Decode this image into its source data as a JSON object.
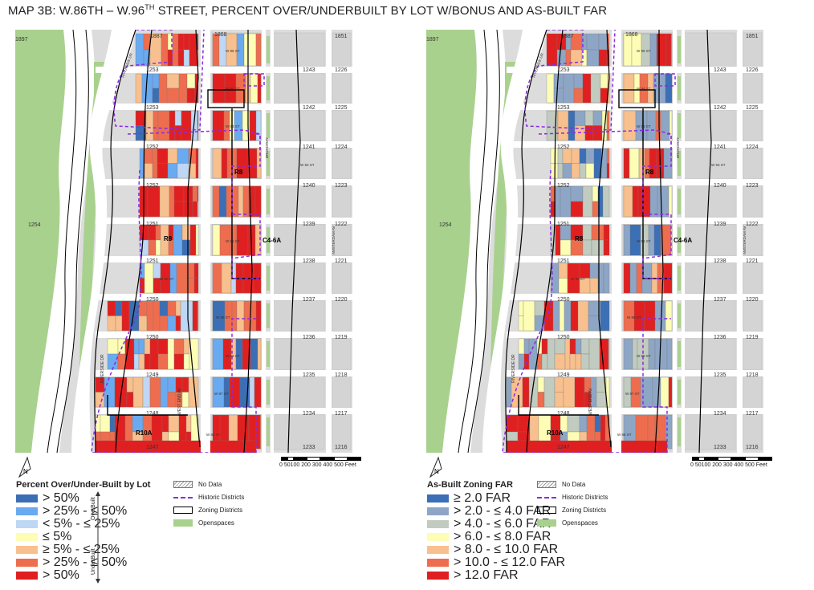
{
  "title": {
    "main": "MAP 3B: W.86TH – W.96",
    "sup": "TH",
    "rest": " STREET, PERCENT OVER/UNDERBUILT BY LOT W/BONUS AND AS-BUILT FAR"
  },
  "map_labels": {
    "block_numbers_left": [
      "1897",
      "1887",
      "1868",
      "1851",
      "1253",
      "1243",
      "1226",
      "1253",
      "1242",
      "1225",
      "1252",
      "1241",
      "1224",
      "1252",
      "1240",
      "1223",
      "1251",
      "1239",
      "1222",
      "1251",
      "1238",
      "1221",
      "1250",
      "1237",
      "1220",
      "1250",
      "1236",
      "1219",
      "1249",
      "1235",
      "1218",
      "1248",
      "1234",
      "1217",
      "1247",
      "1233",
      "1216",
      "1254"
    ],
    "zones": [
      "R8",
      "R8",
      "C4-6A",
      "R10A"
    ],
    "streets": [
      "W 95 ST",
      "W 94 ST",
      "W 93 ST",
      "W 91 ST",
      "W 90 ST",
      "W 89 ST",
      "W 88 ST",
      "W 87 ST",
      "W 86 ST"
    ],
    "avenues": [
      "RIVERSIDE DR",
      "WEST END AV",
      "BROADWAY",
      "AMSTERDAM AV",
      "RIVERSIDE DR"
    ]
  },
  "scale": {
    "ticks": "0 50100  200  300  400  500",
    "unit": "Feet"
  },
  "north_label": "N",
  "legend_left": {
    "title": "Percent Over/Under-Built by Lot",
    "items": [
      {
        "label": "> 50%",
        "color": "#3c6eb4"
      },
      {
        "label": "> 25% - ≤ 50%",
        "color": "#6aaaf0"
      },
      {
        "label": "< 5% - ≤ 25%",
        "color": "#bdd7f5"
      },
      {
        "label": "≤ 5%",
        "color": "#fdfdb5"
      },
      {
        "label": "≥ 5% - ≤ 25%",
        "color": "#f8c08e"
      },
      {
        "label": "> 25% - ≤ 50%",
        "color": "#ee6d4e"
      },
      {
        "label": "> 50%",
        "color": "#e02020"
      }
    ],
    "axis_over": "OverBuilt",
    "axis_under": "UnderBuilt"
  },
  "legend_right": {
    "title": "As-Built Zoning FAR",
    "items": [
      {
        "label": "≥ 2.0 FAR",
        "color": "#3b6fb6"
      },
      {
        "label": "> 2.0 - ≤ 4.0 FAR",
        "color": "#8ea6c6"
      },
      {
        "label": "> 4.0 - ≤ 6.0 FAR",
        "color": "#c2cbbf"
      },
      {
        "label": "> 6.0 - ≤ 8.0 FAR",
        "color": "#fdfdb5"
      },
      {
        "label": "> 8.0 - ≤ 10.0 FAR",
        "color": "#f8c08e"
      },
      {
        "label": "> 10.0 - ≤ 12.0 FAR",
        "color": "#ee6d4e"
      },
      {
        "label": "> 12.0 FAR",
        "color": "#e02020"
      }
    ]
  },
  "aux_legend": {
    "no_data": "No Data",
    "historic": "Historic Districts",
    "zoning": "Zoning Districts",
    "open": "Openspaces"
  }
}
